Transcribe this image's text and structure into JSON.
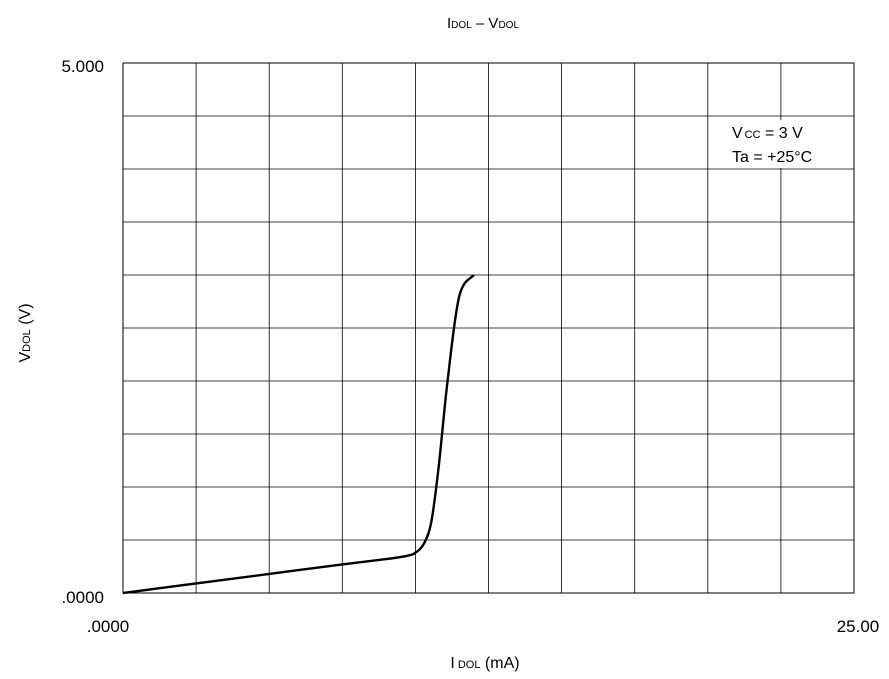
{
  "chart_data": {
    "type": "line",
    "title": {
      "main1": "I",
      "sub1": "DOL",
      "sep": " – ",
      "main2": "V",
      "sub2": "DOL"
    },
    "xlabel": {
      "main": "I",
      "sub": "DOL",
      "unit": " (mA)"
    },
    "ylabel": {
      "main": "V",
      "sub": "DOL",
      "unit": " (V)"
    },
    "x_tick_labels": [
      ".0000",
      "25.00"
    ],
    "y_tick_labels": [
      ".0000",
      "5.000"
    ],
    "xlim": [
      0,
      25
    ],
    "ylim": [
      0,
      5
    ],
    "grid": true,
    "grid_divisions": {
      "x": 10,
      "y": 10
    },
    "annotation": {
      "line1": {
        "main": "V",
        "sub": "CC",
        "rest": " = 3 V"
      },
      "line2": "Ta = +25°C",
      "placement": "top-right"
    },
    "series": [
      {
        "x": [
          0.0,
          2.5,
          5.0,
          7.5,
          9.0,
          9.7,
          10.0,
          10.3,
          10.55,
          10.8,
          11.1,
          11.5,
          12.0
        ],
        "y": [
          0.0,
          0.09,
          0.18,
          0.27,
          0.32,
          0.35,
          0.38,
          0.47,
          0.68,
          1.2,
          2.0,
          2.8,
          3.0
        ]
      }
    ]
  }
}
